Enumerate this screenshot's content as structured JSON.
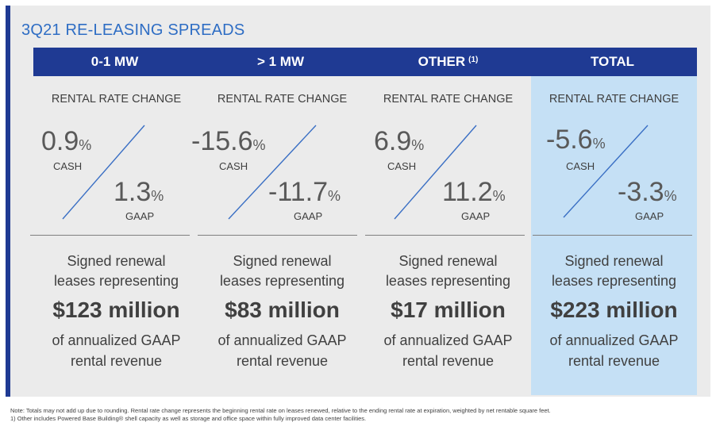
{
  "title": "3Q21 RE-LEASING SPREADS",
  "columns": [
    {
      "header": "0-1 MW",
      "header_sup": "",
      "rrc_label": "RENTAL RATE CHANGE",
      "cash_value": "0.9",
      "cash_pct": "%",
      "cash_label": "CASH",
      "gaap_value": "1.3",
      "gaap_pct": "%",
      "gaap_label": "GAAP",
      "desc_line1": "Signed renewal",
      "desc_line2": "leases representing",
      "amount": "$123 million",
      "desc_line3": "of annualized GAAP",
      "desc_line4": "rental revenue"
    },
    {
      "header": "> 1 MW",
      "header_sup": "",
      "rrc_label": "RENTAL RATE CHANGE",
      "cash_value": "-15.6",
      "cash_pct": "%",
      "cash_label": "CASH",
      "gaap_value": "-11.7",
      "gaap_pct": "%",
      "gaap_label": "GAAP",
      "desc_line1": "Signed renewal",
      "desc_line2": "leases representing",
      "amount": "$83 million",
      "desc_line3": "of annualized GAAP",
      "desc_line4": "rental revenue"
    },
    {
      "header": "OTHER",
      "header_sup": "(1)",
      "rrc_label": "RENTAL RATE CHANGE",
      "cash_value": "6.9",
      "cash_pct": "%",
      "cash_label": "CASH",
      "gaap_value": "11.2",
      "gaap_pct": "%",
      "gaap_label": "GAAP",
      "desc_line1": "Signed renewal",
      "desc_line2": "leases representing",
      "amount": "$17 million",
      "desc_line3": "of annualized GAAP",
      "desc_line4": "rental revenue"
    },
    {
      "header": "TOTAL",
      "header_sup": "",
      "rrc_label": "RENTAL RATE CHANGE",
      "cash_value": "-5.6",
      "cash_pct": "%",
      "cash_label": "CASH",
      "gaap_value": "-3.3",
      "gaap_pct": "%",
      "gaap_label": "GAAP",
      "desc_line1": "Signed renewal",
      "desc_line2": "leases representing",
      "amount": "$223 million",
      "desc_line3": "of annualized GAAP",
      "desc_line4": "rental revenue"
    }
  ],
  "footnotes": {
    "note": "Note:  Totals may not add up due to rounding. Rental rate change represents the beginning rental rate on leases renewed, relative to the ending rental rate at expiration, weighted by net rentable square feet.",
    "note1": "1)  Other includes Powered Base Building® shell capacity as well as storage and office space within fully improved data center facilities."
  },
  "colors": {
    "header_bg": "#1f3a93",
    "title": "#2e6dc4",
    "total_highlight": "#c5e0f5",
    "diagonal": "#3a6fc4"
  }
}
